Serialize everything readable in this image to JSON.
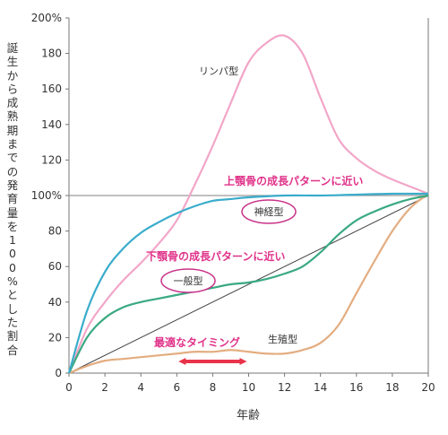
{
  "chart_data": {
    "type": "line",
    "xlabel": "年齢",
    "ylabel": "誕生から成熟期までの発育量を100%とした割合",
    "xlim": [
      0,
      20
    ],
    "ylim": [
      0,
      200
    ],
    "x_ticks": [
      "0",
      "2",
      "4",
      "6",
      "8",
      "10",
      "12",
      "14",
      "16",
      "18",
      "20"
    ],
    "y_ticks": [
      "0",
      "20",
      "40",
      "60",
      "80",
      "100%",
      "120",
      "140",
      "160",
      "180",
      "200%"
    ],
    "reference_line": {
      "y": 100
    },
    "grid": false,
    "series": [
      {
        "name": "リンパ型",
        "color": "#f2a6c8",
        "x": [
          0,
          1,
          2,
          3,
          4,
          5,
          6,
          7,
          8,
          9,
          10,
          11,
          12,
          13,
          14,
          15,
          16,
          17,
          18,
          19,
          20
        ],
        "y": [
          0,
          25,
          40,
          52,
          62,
          73,
          86,
          106,
          128,
          152,
          175,
          186,
          190,
          180,
          155,
          132,
          121,
          114,
          109,
          105,
          101
        ]
      },
      {
        "name": "神経型",
        "color": "#3aaccb",
        "x": [
          0,
          1,
          2,
          3,
          4,
          5,
          6,
          7,
          8,
          9,
          10,
          12,
          14,
          16,
          18,
          20
        ],
        "y": [
          0,
          35,
          57,
          70,
          79,
          85,
          90,
          94,
          97,
          98,
          99,
          100,
          100,
          100.5,
          101,
          101
        ]
      },
      {
        "name": "一般型",
        "color": "#3aa981",
        "x": [
          0,
          1,
          2,
          3,
          4,
          5,
          6,
          7,
          8,
          9,
          10,
          11,
          12,
          13,
          14,
          15,
          16,
          17,
          18,
          19,
          20
        ],
        "y": [
          0,
          20,
          31,
          37,
          40,
          42,
          44,
          46,
          48,
          50,
          51,
          53,
          56,
          60,
          68,
          78,
          86,
          91,
          95,
          98,
          100
        ]
      },
      {
        "name": "生殖型",
        "color": "#e3ad80",
        "x": [
          0,
          1,
          2,
          3,
          4,
          5,
          6,
          7,
          8,
          9,
          10,
          11,
          12,
          13,
          14,
          15,
          16,
          17,
          18,
          19,
          20
        ],
        "y": [
          0,
          4,
          7,
          8,
          9,
          10,
          11,
          12,
          12,
          13,
          12,
          11,
          11,
          13,
          17,
          27,
          45,
          63,
          80,
          93,
          101
        ]
      },
      {
        "name": "",
        "color": "#444444",
        "x": [
          0,
          20
        ],
        "y": [
          0,
          100
        ]
      }
    ],
    "annotations": {
      "upper_jaw": "上顎骨の成長パターンに近い",
      "lower_jaw": "下顎骨の成長パターンに近い",
      "timing": "最適なタイミング",
      "timing_range": [
        6,
        10
      ]
    }
  }
}
